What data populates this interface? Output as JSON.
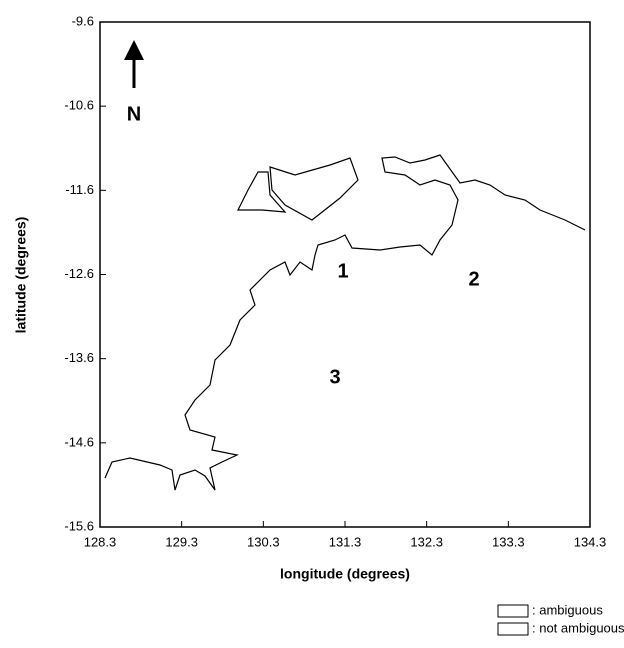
{
  "map": {
    "xlabel": "longitude (degrees)",
    "ylabel": "latitude (degrees)",
    "north": "N",
    "regions": [
      "1",
      "2",
      "3"
    ],
    "xlim": [
      128.3,
      134.3
    ],
    "ylim": [
      -15.6,
      -9.6
    ],
    "xticks": [
      128.3,
      129.3,
      130.3,
      131.3,
      132.3,
      133.3,
      134.3
    ],
    "yticks": [
      -9.6,
      -10.6,
      -11.6,
      -12.6,
      -13.6,
      -14.6,
      -15.6
    ],
    "legend": [
      ": ambiguous",
      ": not ambiguous"
    ]
  }
}
